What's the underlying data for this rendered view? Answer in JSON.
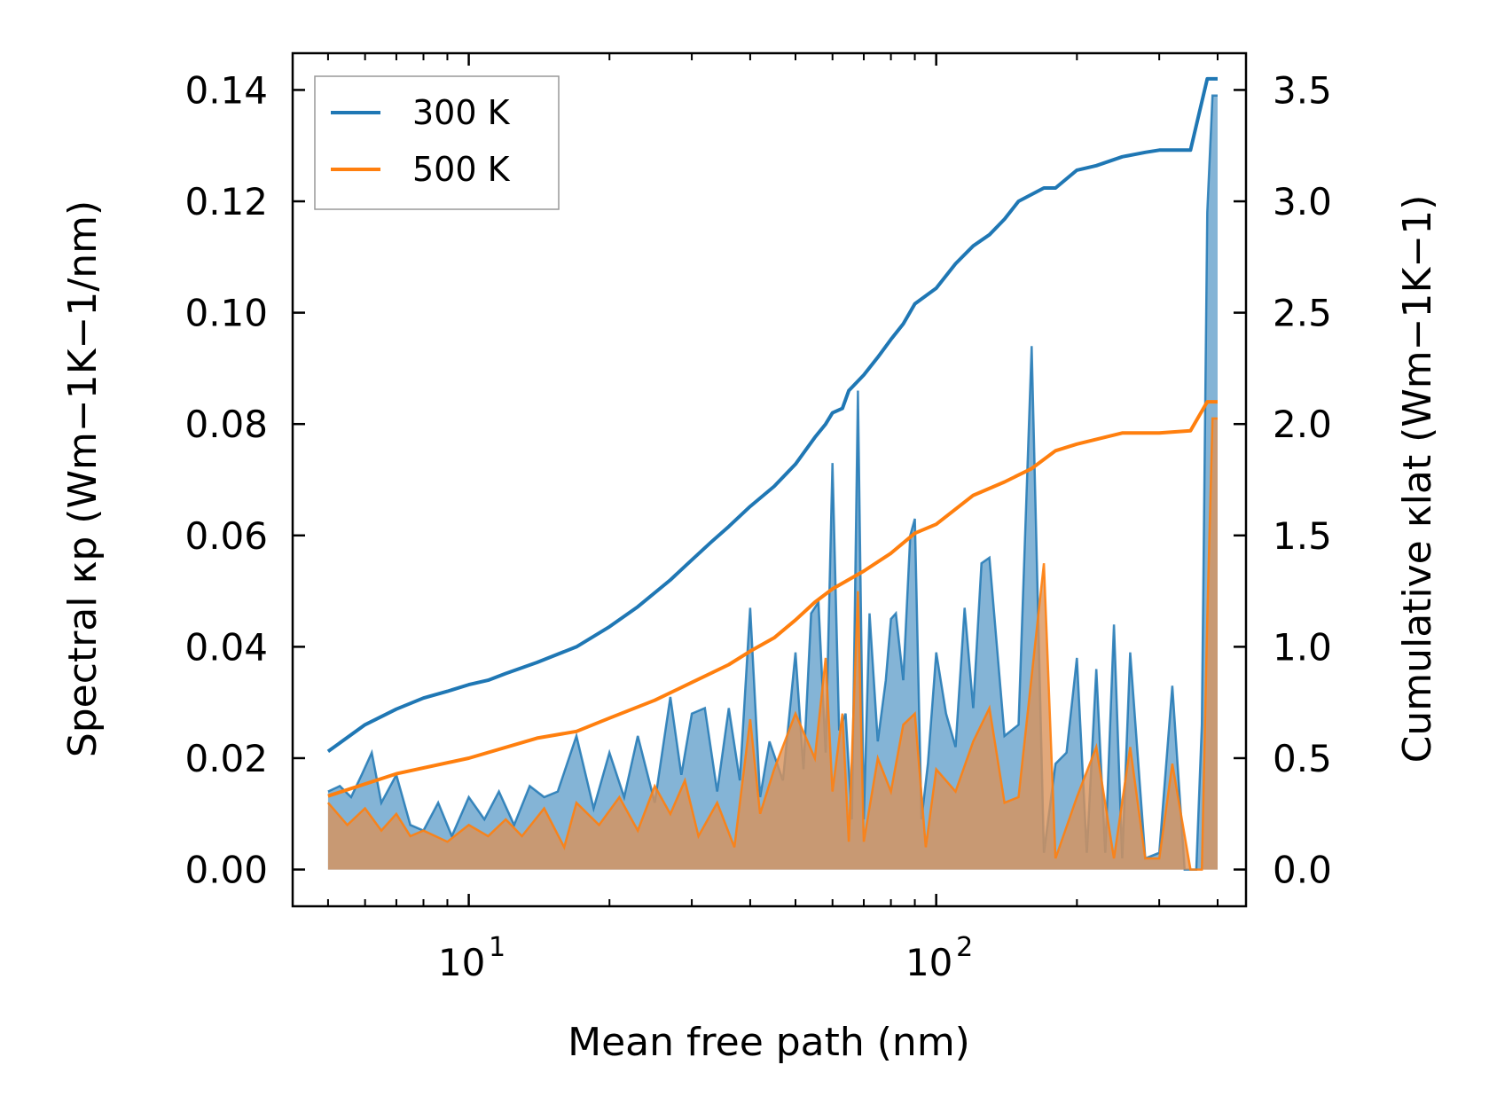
{
  "chart_data": {
    "type": "line",
    "xlabel": "Mean free path (nm)",
    "ylabel_left": "Spectral κp (Wm−1K−1/nm)",
    "ylabel_right": "Cumulative κlat (Wm−1K−1)",
    "x_scale": "log",
    "xlim": [
      4.2,
      460
    ],
    "ylim_left": [
      -0.0066,
      0.1466
    ],
    "ylim_right": [
      -0.165,
      3.665
    ],
    "x_ticks": [
      {
        "value": 10,
        "label": "10",
        "exp": "1"
      },
      {
        "value": 100,
        "label": "10",
        "exp": "2"
      }
    ],
    "y_ticks_left": [
      0,
      0.02,
      0.04,
      0.06,
      0.08,
      0.1,
      0.12,
      0.14
    ],
    "y_tick_labels_left": [
      "0.00",
      "0.02",
      "0.04",
      "0.06",
      "0.08",
      "0.10",
      "0.12",
      "0.14"
    ],
    "y_ticks_right": [
      0,
      0.5,
      1.0,
      1.5,
      2.0,
      2.5,
      3.0,
      3.5
    ],
    "y_tick_labels_right": [
      "0.0",
      "0.5",
      "1.0",
      "1.5",
      "2.0",
      "2.5",
      "3.0",
      "3.5"
    ],
    "legend": {
      "position": "upper-left",
      "entries": [
        "300 K",
        "500 K"
      ]
    },
    "colors": {
      "s300": "#1f77b4",
      "s500": "#ff7f0e",
      "fill300": "#1f77b4",
      "fill500": "#d9925a"
    },
    "series": [
      {
        "name": "300 K",
        "axis": "right",
        "kind": "cumulative",
        "x": [
          5,
          6,
          7,
          8,
          9,
          10,
          11,
          12,
          14,
          17,
          20,
          23,
          27,
          30,
          33,
          36,
          40,
          45,
          50,
          55,
          58,
          60,
          63,
          65,
          70,
          75,
          80,
          85,
          90,
          100,
          110,
          120,
          130,
          140,
          150,
          170,
          180,
          200,
          220,
          250,
          280,
          300,
          350,
          380,
          400
        ],
        "y": [
          0.53,
          0.65,
          0.72,
          0.77,
          0.8,
          0.83,
          0.85,
          0.88,
          0.93,
          1.0,
          1.09,
          1.18,
          1.3,
          1.39,
          1.47,
          1.54,
          1.63,
          1.72,
          1.82,
          1.94,
          2.0,
          2.05,
          2.07,
          2.15,
          2.22,
          2.3,
          2.38,
          2.45,
          2.54,
          2.61,
          2.72,
          2.8,
          2.85,
          2.92,
          3.0,
          3.06,
          3.06,
          3.14,
          3.16,
          3.2,
          3.22,
          3.23,
          3.23,
          3.55,
          3.55
        ]
      },
      {
        "name": "500 K",
        "axis": "right",
        "kind": "cumulative",
        "x": [
          5,
          7,
          10,
          14,
          17,
          20,
          25,
          30,
          36,
          40,
          45,
          50,
          55,
          60,
          70,
          80,
          90,
          100,
          120,
          140,
          160,
          180,
          200,
          250,
          300,
          350,
          380,
          400
        ],
        "y": [
          0.33,
          0.43,
          0.5,
          0.59,
          0.62,
          0.68,
          0.76,
          0.84,
          0.92,
          0.98,
          1.04,
          1.12,
          1.2,
          1.26,
          1.34,
          1.42,
          1.51,
          1.55,
          1.68,
          1.74,
          1.8,
          1.88,
          1.91,
          1.96,
          1.96,
          1.97,
          2.1,
          2.1
        ]
      },
      {
        "name": "300 K spectral",
        "axis": "left",
        "kind": "spectral",
        "x": [
          5,
          5.3,
          5.6,
          5.9,
          6.2,
          6.5,
          7,
          7.5,
          8,
          8.6,
          9.2,
          10,
          10.8,
          11.6,
          12.5,
          13.5,
          14.5,
          15.5,
          17,
          18.5,
          20,
          21.5,
          23,
          25,
          27,
          28.5,
          30,
          32,
          34,
          36,
          38,
          40,
          42,
          44,
          47,
          50,
          52,
          54,
          56,
          58,
          60,
          62,
          64,
          66,
          68,
          70,
          72,
          75,
          78,
          80,
          82,
          85,
          88,
          90,
          93,
          96,
          100,
          105,
          110,
          115,
          120,
          125,
          130,
          140,
          150,
          160,
          170,
          180,
          190,
          200,
          210,
          220,
          230,
          240,
          250,
          260,
          280,
          300,
          320,
          340,
          360,
          370,
          380,
          390,
          400
        ],
        "y": [
          0.014,
          0.015,
          0.013,
          0.017,
          0.021,
          0.012,
          0.017,
          0.008,
          0.007,
          0.012,
          0.006,
          0.013,
          0.009,
          0.014,
          0.008,
          0.015,
          0.013,
          0.014,
          0.024,
          0.011,
          0.021,
          0.013,
          0.024,
          0.012,
          0.031,
          0.017,
          0.028,
          0.029,
          0.014,
          0.029,
          0.016,
          0.047,
          0.013,
          0.023,
          0.016,
          0.039,
          0.018,
          0.046,
          0.048,
          0.021,
          0.073,
          0.025,
          0.028,
          0.009,
          0.086,
          0.009,
          0.046,
          0.023,
          0.034,
          0.045,
          0.046,
          0.034,
          0.06,
          0.063,
          0.009,
          0.019,
          0.039,
          0.028,
          0.022,
          0.047,
          0.029,
          0.055,
          0.056,
          0.024,
          0.026,
          0.094,
          0.003,
          0.019,
          0.021,
          0.038,
          0.003,
          0.036,
          0.003,
          0.044,
          0.002,
          0.039,
          0.002,
          0.003,
          0.033,
          0.0,
          0.0,
          0.026,
          0.118,
          0.139,
          0.139
        ]
      },
      {
        "name": "500 K spectral",
        "axis": "left",
        "kind": "spectral",
        "x": [
          5,
          5.5,
          6,
          6.5,
          7,
          7.5,
          8,
          9,
          10,
          11,
          12,
          13,
          14.5,
          16,
          17,
          19,
          21,
          23,
          25,
          27,
          29,
          31,
          34,
          37,
          40,
          42,
          45,
          50,
          55,
          58,
          60,
          63,
          65,
          68,
          70,
          75,
          80,
          85,
          90,
          95,
          100,
          110,
          120,
          130,
          140,
          150,
          170,
          180,
          200,
          220,
          240,
          260,
          280,
          300,
          320,
          350,
          370,
          380,
          390,
          400
        ],
        "y": [
          0.012,
          0.008,
          0.011,
          0.007,
          0.01,
          0.006,
          0.007,
          0.005,
          0.008,
          0.006,
          0.009,
          0.006,
          0.011,
          0.004,
          0.012,
          0.008,
          0.013,
          0.007,
          0.015,
          0.01,
          0.016,
          0.006,
          0.012,
          0.004,
          0.027,
          0.01,
          0.018,
          0.028,
          0.02,
          0.038,
          0.014,
          0.028,
          0.005,
          0.05,
          0.005,
          0.02,
          0.014,
          0.026,
          0.028,
          0.004,
          0.018,
          0.014,
          0.023,
          0.029,
          0.012,
          0.013,
          0.055,
          0.002,
          0.013,
          0.022,
          0.002,
          0.022,
          0.002,
          0.002,
          0.019,
          0.0,
          0.0,
          0.045,
          0.081,
          0.081
        ]
      }
    ]
  }
}
